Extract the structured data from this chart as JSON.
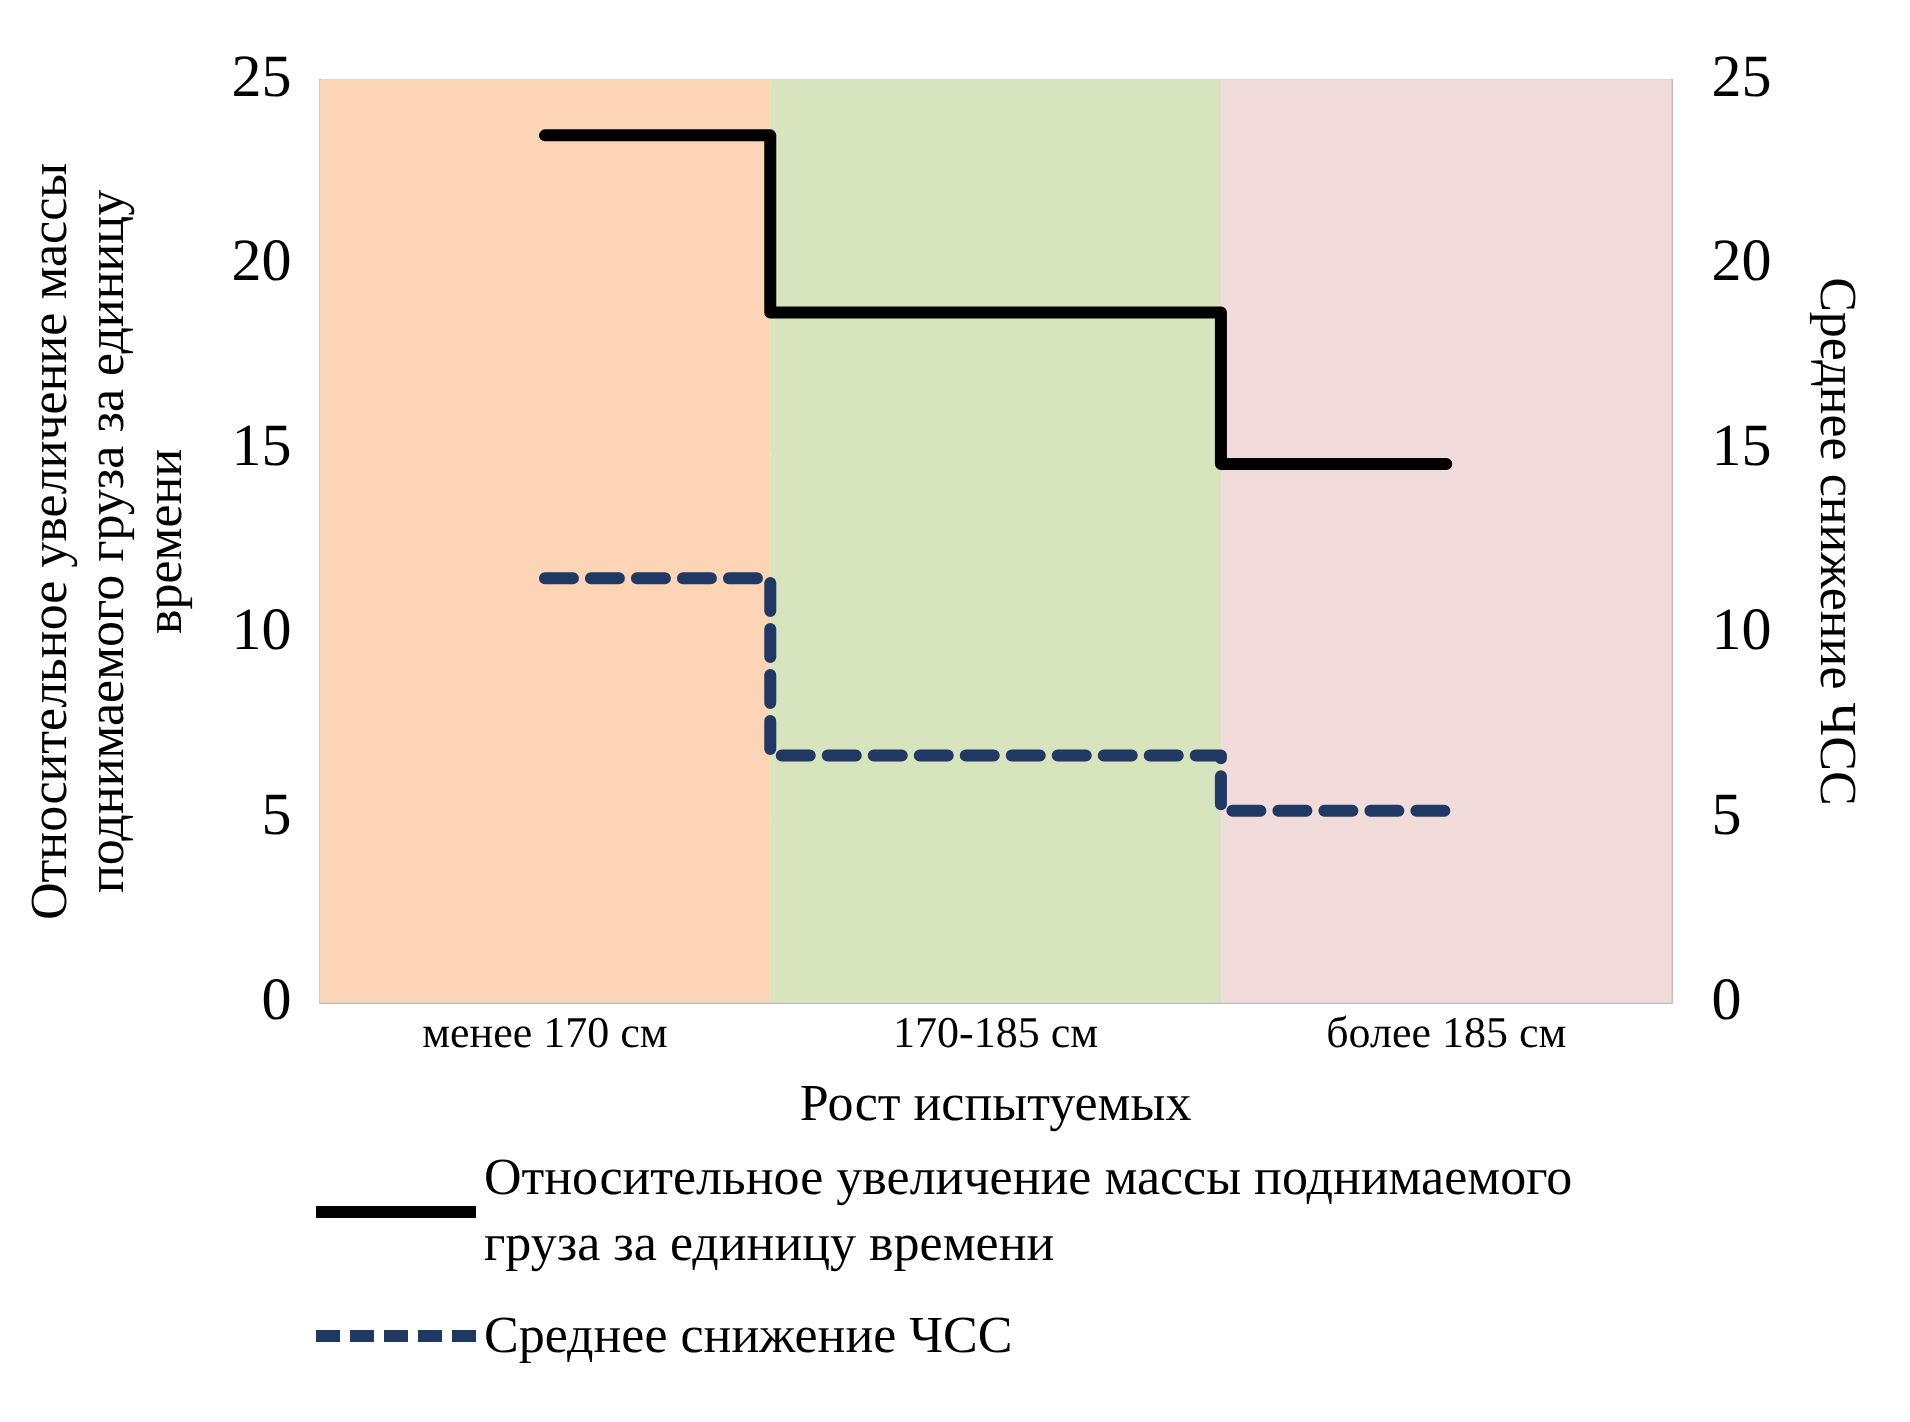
{
  "chart_data": {
    "type": "step",
    "categories": [
      "менее 170 см",
      "170-185 см",
      "более 185 см"
    ],
    "series": [
      {
        "name": "Относительное увеличение массы поднимаемого груза за единицу времени",
        "color": "#000000",
        "values": [
          23.5,
          18.7,
          14.6
        ],
        "line_style": "solid"
      },
      {
        "name": "Среднее снижение ЧСС",
        "color": "#1f3864",
        "values": [
          11.5,
          6.7,
          5.2
        ],
        "line_style": "dashed"
      }
    ],
    "xlabel": "Рост испытуемых",
    "ylabel": "Относительное увеличение массы поднимаемого груза за единицу времени",
    "y2label": "Среднее снижение ЧСС",
    "ylim": [
      0,
      25
    ],
    "yticks": [
      0,
      5,
      10,
      15,
      20,
      25
    ],
    "y2lim": [
      0,
      25
    ],
    "y2ticks": [
      0,
      5,
      10,
      15,
      20,
      25
    ],
    "bands": [
      {
        "axis": "x",
        "from": "менее 170 см",
        "to": "менее 170 см",
        "color": "#fbd5b5"
      },
      {
        "axis": "x",
        "from": "170-185 см",
        "to": "170-185 см",
        "color": "#d7e4bd"
      },
      {
        "axis": "x",
        "from": "более 185 см",
        "to": "более 185 см",
        "color": "#f2dcdb"
      }
    ],
    "grid": "y",
    "legend": "bottom",
    "marker": "none"
  }
}
